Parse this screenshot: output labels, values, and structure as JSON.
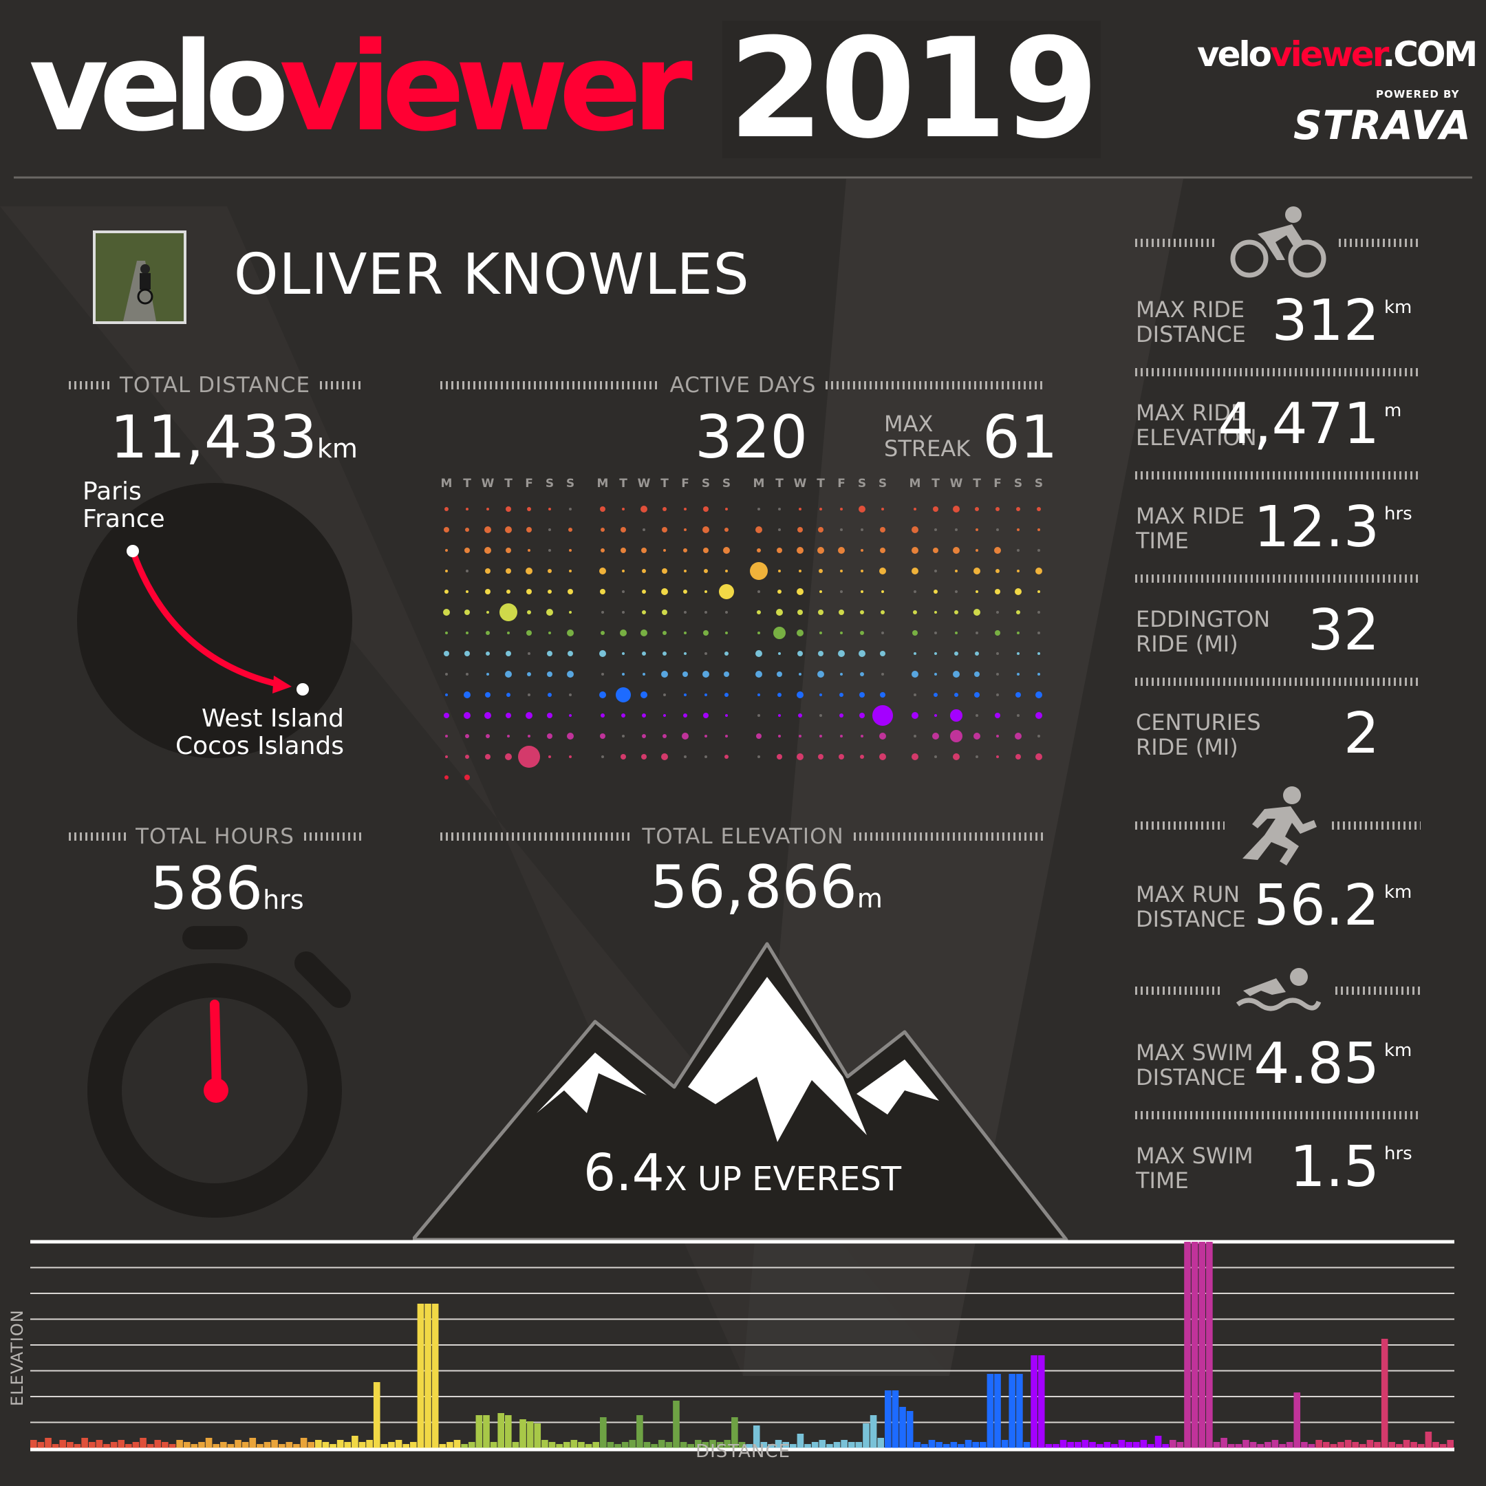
{
  "brand": {
    "velo": "velo",
    "viewer": "viewer",
    "year": "2019",
    "site_velo": "velo",
    "site_viewer": "viewer",
    "site_com": ".COM",
    "powered_by": "POWERED BY",
    "strava": "STRAVA"
  },
  "colors": {
    "accent": "#ff0033",
    "background": "#2e2c2a",
    "panel_dark": "#1f1d1b",
    "label_grey": "#b8b5b2"
  },
  "athlete": {
    "name": "OLIVER KNOWLES",
    "photo": "athlete-photo"
  },
  "total_distance": {
    "label": "TOTAL DISTANCE",
    "value": "11,433",
    "unit": "km",
    "from": "Paris\nFrance",
    "to": "West Island\nCocos Islands"
  },
  "active_days": {
    "label": "ACTIVE DAYS",
    "value": "320",
    "streak_label": "MAX\nSTREAK",
    "streak_value": "61",
    "weekdays": [
      "M",
      "T",
      "W",
      "T",
      "F",
      "S",
      "S"
    ]
  },
  "total_hours": {
    "label": "TOTAL HOURS",
    "value": "586",
    "unit": "hrs"
  },
  "total_elevation": {
    "label": "TOTAL ELEVATION",
    "value": "56,866",
    "unit": "m",
    "everest_multiple": "6.4",
    "everest_text": "X UP EVEREST"
  },
  "ride_icon": "bike-icon",
  "run_icon": "run-icon",
  "swim_icon": "swim-icon",
  "ride_stats": [
    {
      "label": "MAX RIDE\nDISTANCE",
      "value": "312",
      "unit": "km"
    },
    {
      "label": "MAX RIDE\nELEVATION",
      "value": "4,471",
      "unit": "m"
    },
    {
      "label": "MAX RIDE\nTIME",
      "value": "12.3",
      "unit": "hrs"
    },
    {
      "label": "EDDINGTON\nRIDE (mi)",
      "value": "32",
      "unit": ""
    },
    {
      "label": "CENTURIES\nRIDE (mi)",
      "value": "2",
      "unit": ""
    }
  ],
  "run_stats": [
    {
      "label": "MAX RUN\nDISTANCE",
      "value": "56.2",
      "unit": "km"
    }
  ],
  "swim_stats": [
    {
      "label": "MAX SWIM\nDISTANCE",
      "value": "4.85",
      "unit": "km"
    },
    {
      "label": "MAX SWIM\nTIME",
      "value": "1.5",
      "unit": "hrs"
    }
  ],
  "chart_data": {
    "type": "bar",
    "xlabel": "DISTANCE",
    "ylabel": "ELEVATION",
    "grid": true,
    "note_values": "relative elevation per activity, ordered through the year (colour = season)",
    "values": [
      4,
      3,
      5,
      2,
      4,
      3,
      2,
      5,
      3,
      4,
      2,
      3,
      4,
      2,
      3,
      5,
      2,
      4,
      3,
      2,
      4,
      3,
      2,
      3,
      5,
      2,
      3,
      2,
      4,
      3,
      5,
      2,
      3,
      4,
      2,
      3,
      2,
      5,
      3,
      4,
      3,
      2,
      4,
      3,
      6,
      3,
      4,
      32,
      2,
      3,
      4,
      2,
      3,
      70,
      70,
      70,
      2,
      3,
      4,
      2,
      3,
      16,
      16,
      3,
      17,
      16,
      3,
      14,
      13,
      12,
      4,
      3,
      2,
      3,
      4,
      3,
      2,
      3,
      15,
      3,
      2,
      3,
      4,
      16,
      3,
      2,
      4,
      3,
      23,
      3,
      2,
      4,
      3,
      4,
      3,
      4,
      15,
      3,
      2,
      11,
      3,
      2,
      4,
      3,
      2,
      7,
      2,
      3,
      4,
      2,
      3,
      4,
      3,
      3,
      12,
      16,
      5,
      28,
      28,
      20,
      18,
      3,
      2,
      4,
      3,
      2,
      3,
      2,
      4,
      3,
      3,
      36,
      36,
      4,
      36,
      36,
      3,
      45,
      45,
      2,
      2,
      4,
      3,
      3,
      4,
      3,
      2,
      3,
      2,
      4,
      3,
      3,
      4,
      2,
      6,
      2,
      4,
      3,
      100,
      100,
      100,
      100,
      3,
      5,
      2,
      2,
      4,
      3,
      2,
      3,
      4,
      2,
      3,
      27,
      3,
      2,
      4,
      3,
      2,
      3,
      4,
      3,
      2,
      4,
      3,
      53,
      3,
      2,
      4,
      3,
      2,
      8,
      3,
      2,
      4
    ]
  }
}
